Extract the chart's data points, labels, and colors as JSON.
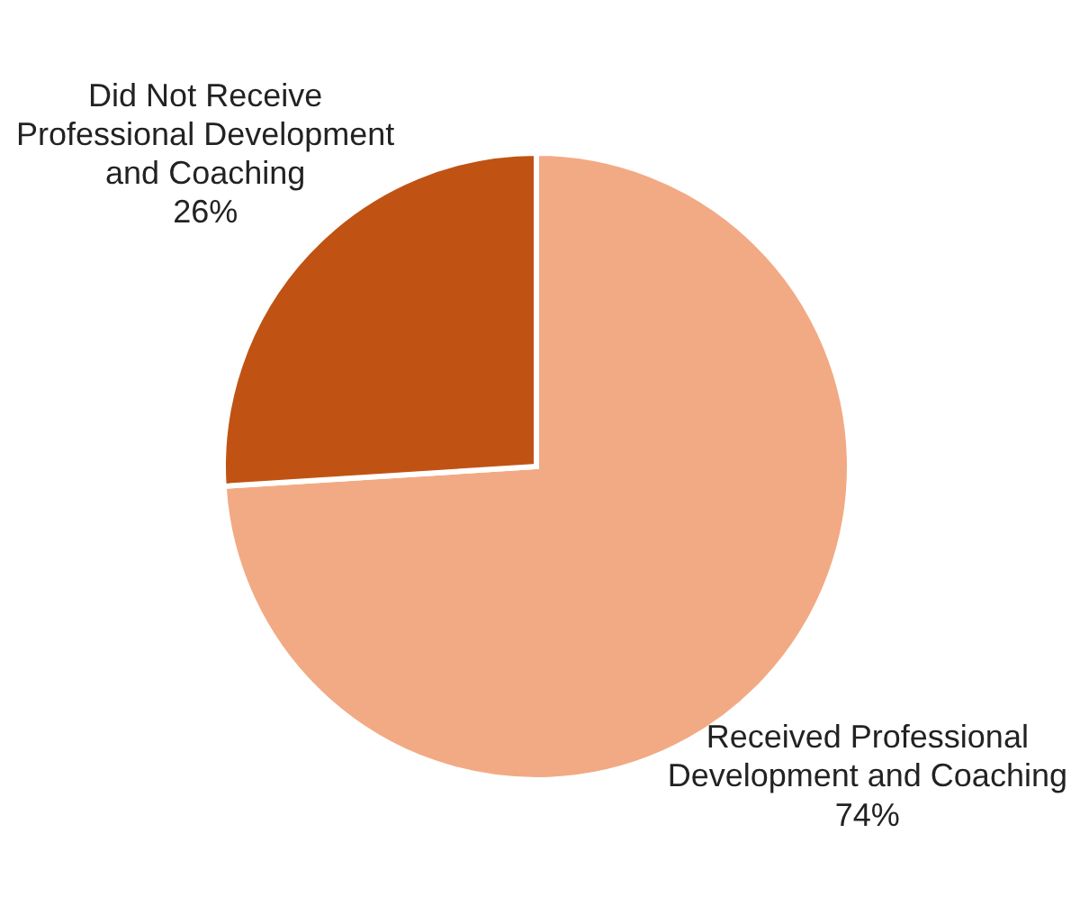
{
  "chart_data": {
    "type": "pie",
    "categories": [
      "Received Professional Development and Coaching",
      "Did Not Receive Professional Development and Coaching"
    ],
    "values": [
      74,
      26
    ],
    "colors": [
      "#f2aa84",
      "#c05314"
    ],
    "value_labels": [
      "74%",
      "26%"
    ]
  }
}
